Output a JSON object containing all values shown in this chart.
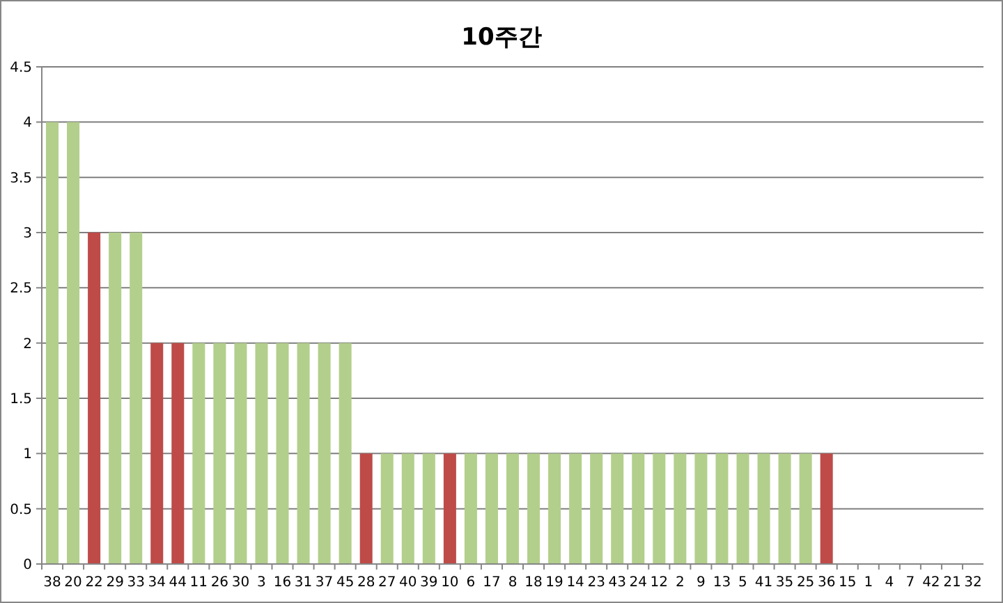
{
  "chart_data": {
    "type": "bar",
    "title": "10주간",
    "categories": [
      "38",
      "20",
      "22",
      "29",
      "33",
      "34",
      "44",
      "11",
      "26",
      "30",
      "3",
      "16",
      "31",
      "37",
      "45",
      "28",
      "27",
      "40",
      "39",
      "10",
      "6",
      "17",
      "8",
      "18",
      "19",
      "14",
      "23",
      "43",
      "24",
      "12",
      "2",
      "9",
      "13",
      "5",
      "41",
      "35",
      "25",
      "36",
      "15",
      "1",
      "4",
      "7",
      "42",
      "21",
      "32"
    ],
    "values": [
      4,
      4,
      3,
      3,
      3,
      2,
      2,
      2,
      2,
      2,
      2,
      2,
      2,
      2,
      2,
      1,
      1,
      1,
      1,
      1,
      1,
      1,
      1,
      1,
      1,
      1,
      1,
      1,
      1,
      1,
      1,
      1,
      1,
      1,
      1,
      1,
      1,
      1,
      0,
      0,
      0,
      0,
      0,
      0,
      0
    ],
    "colors": [
      "#b3cf8c",
      "#b3cf8c",
      "#be4b48",
      "#b3cf8c",
      "#b3cf8c",
      "#be4b48",
      "#be4b48",
      "#b3cf8c",
      "#b3cf8c",
      "#b3cf8c",
      "#b3cf8c",
      "#b3cf8c",
      "#b3cf8c",
      "#b3cf8c",
      "#b3cf8c",
      "#be4b48",
      "#b3cf8c",
      "#b3cf8c",
      "#b3cf8c",
      "#be4b48",
      "#b3cf8c",
      "#b3cf8c",
      "#b3cf8c",
      "#b3cf8c",
      "#b3cf8c",
      "#b3cf8c",
      "#b3cf8c",
      "#b3cf8c",
      "#b3cf8c",
      "#b3cf8c",
      "#b3cf8c",
      "#b3cf8c",
      "#b3cf8c",
      "#b3cf8c",
      "#b3cf8c",
      "#b3cf8c",
      "#b3cf8c",
      "#be4b48",
      "#b3cf8c",
      "#b3cf8c",
      "#b3cf8c",
      "#b3cf8c",
      "#b3cf8c",
      "#b3cf8c",
      "#b3cf8c"
    ],
    "ylim": [
      0,
      4.5
    ],
    "yticks": [
      0,
      0.5,
      1,
      1.5,
      2,
      2.5,
      3,
      3.5,
      4,
      4.5
    ],
    "grid": "y"
  }
}
